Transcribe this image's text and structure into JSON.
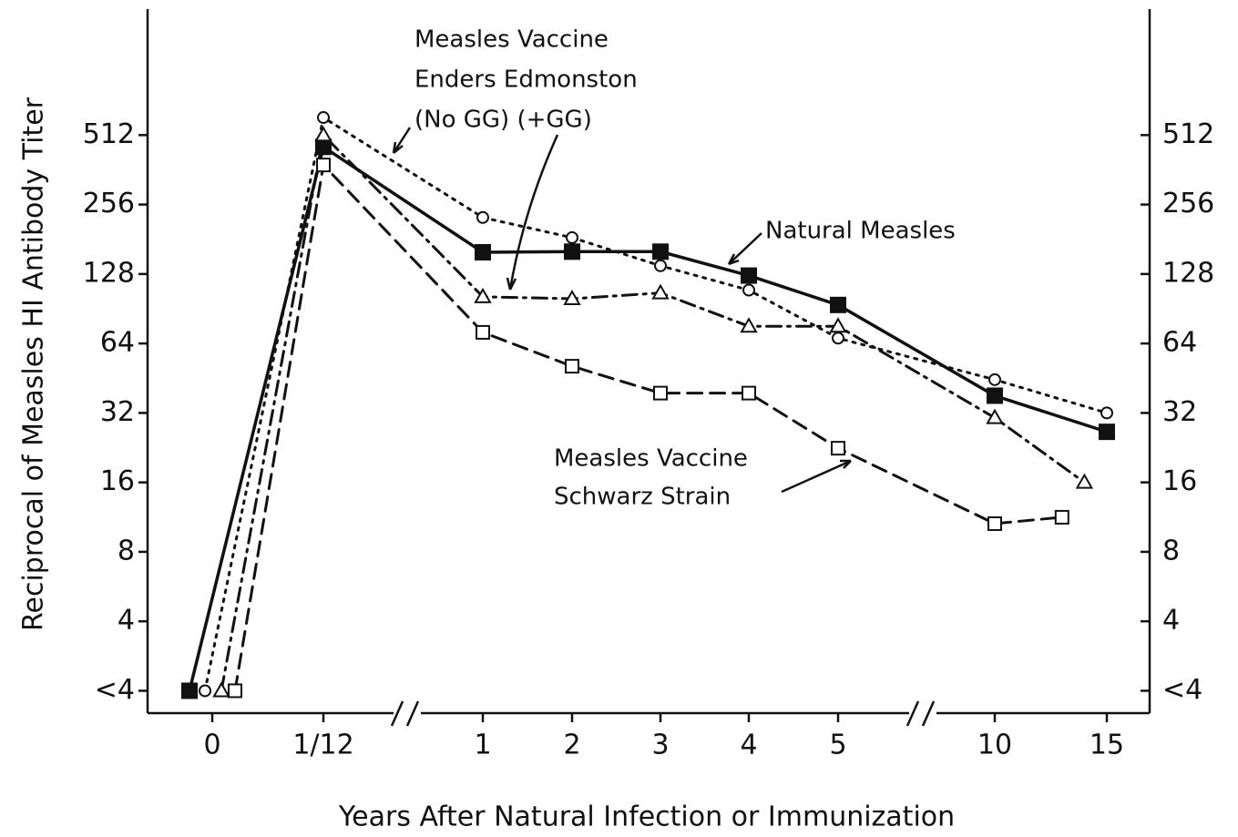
{
  "chart_data": {
    "type": "line",
    "x_label": "Years After Natural Infection or Immunization",
    "y_label": "Reciprocal of Measles HI Antibody Titer",
    "log_scale_y": true,
    "xlim": [
      -0.1,
      16
    ],
    "ylim": [
      1.6,
      1800
    ],
    "xticks": [
      0,
      {
        "value": 0.0833,
        "label": "1/12"
      },
      1,
      2,
      3,
      4,
      5,
      10,
      15
    ],
    "yticks": [
      {
        "value": 2,
        "label": "<4"
      },
      4,
      8,
      16,
      32,
      64,
      128,
      256,
      512
    ],
    "annotations": [
      "Measles Vaccine",
      "Enders Edmonston",
      "(No GG) (+GG)",
      "Natural Measles",
      "Measles Vaccine",
      "Schwarz Strain"
    ],
    "series": [
      {
        "name": "Natural Measles",
        "color": "#111111",
        "marker": "filled-square",
        "dash": "solid",
        "x": [
          0,
          0.0833,
          1,
          2,
          3,
          4,
          5,
          10,
          15
        ],
        "values": [
          2,
          455,
          159,
          160,
          160,
          126,
          94,
          38,
          26.5
        ]
      },
      {
        "name": "Enders Edmonston (No GG)",
        "color": "#111111",
        "marker": "circle",
        "dash": "dotted",
        "x": [
          0,
          0.0833,
          1,
          2,
          3,
          4,
          5,
          10,
          15
        ],
        "values": [
          2,
          610,
          225,
          184,
          139,
          109,
          67.5,
          44.6,
          32
        ]
      },
      {
        "name": "Enders Edmonston (+GG)",
        "color": "#111111",
        "marker": "triangle",
        "dash": "dashdot",
        "x": [
          0,
          0.0833,
          1,
          2,
          3,
          4,
          5,
          10,
          14
        ],
        "values": [
          2,
          512,
          102,
          100,
          106,
          76,
          76,
          30.5,
          16
        ]
      },
      {
        "name": "Schwarz Strain",
        "color": "#111111",
        "marker": "square",
        "dash": "dashed",
        "x": [
          0,
          0.0833,
          1,
          2,
          3,
          4,
          5,
          10,
          13
        ],
        "values": [
          2,
          380,
          71.5,
          51,
          39,
          39,
          22.5,
          10.6,
          11.3
        ]
      }
    ]
  }
}
